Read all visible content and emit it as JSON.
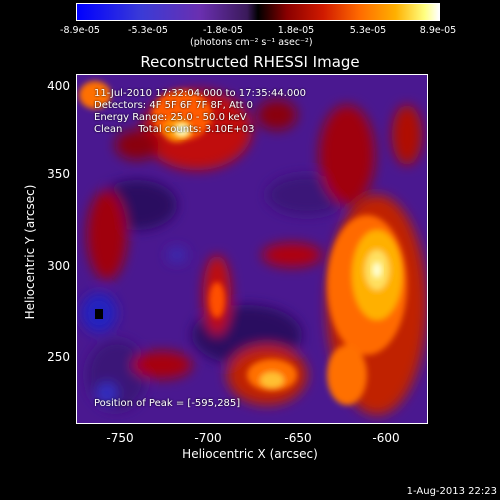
{
  "colorbar": {
    "ticks": [
      "-8.9e-05",
      "-5.3e-05",
      "-1.8e-05",
      "1.8e-05",
      "5.3e-05",
      "8.9e-05"
    ],
    "units": "(photons cm⁻² s⁻¹ asec⁻²)"
  },
  "title": "Reconstructed RHESSI Image",
  "annotations": {
    "time": "11-Jul-2010 17:32:04.000 to 17:35:44.000",
    "detectors": "Detectors: 4F 5F 6F 7F 8F, Att 0",
    "energy": "Energy Range: 25.0 - 50.0 keV",
    "clean": "Clean     Total counts: 3.10E+03",
    "peak": "Position of Peak = [-595,285]"
  },
  "axes": {
    "x_title": "Heliocentric X (arcsec)",
    "y_title": "Heliocentric Y (arcsec)",
    "x_ticks": [
      "-750",
      "-700",
      "-650",
      "-600"
    ],
    "y_ticks": [
      "400",
      "350",
      "300",
      "250"
    ]
  },
  "footer": {
    "date": "1-Aug-2013 22:23"
  },
  "colors": {
    "background": "#000000",
    "map_base": "#4a1890",
    "peak": "#ffffc0"
  }
}
